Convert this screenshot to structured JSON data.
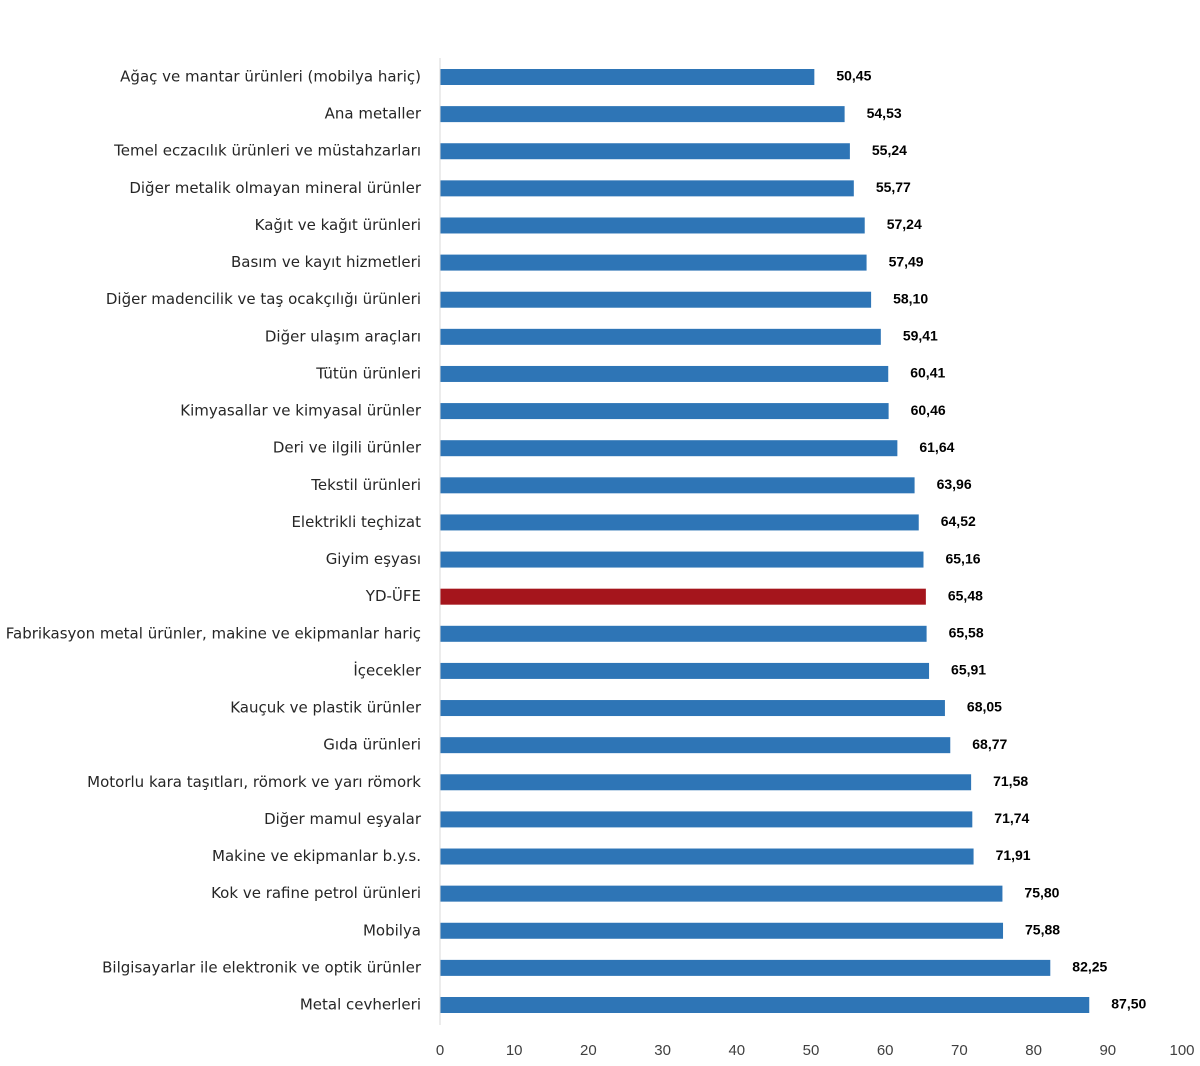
{
  "chart_data": {
    "type": "bar",
    "orientation": "horizontal",
    "title": "",
    "xlabel": "",
    "ylabel": "",
    "xlim": [
      0,
      100
    ],
    "xticks": [
      0,
      10,
      20,
      30,
      40,
      50,
      60,
      70,
      80,
      90,
      100
    ],
    "grid": false,
    "legend": "none",
    "colors": {
      "default": "#2e75b6",
      "highlight": "#a5151c"
    },
    "highlight_category": "YD-ÜFE",
    "categories": [
      "Ağaç ve mantar ürünleri (mobilya hariç)",
      "Ana metaller",
      "Temel eczacılık ürünleri ve müstahzarları",
      "Diğer metalik olmayan mineral ürünler",
      "Kağıt ve kağıt ürünleri",
      "Basım ve kayıt hizmetleri",
      "Diğer madencilik ve taş ocakçılığı ürünleri",
      "Diğer ulaşım araçları",
      "Tütün ürünleri",
      "Kimyasallar ve kimyasal ürünler",
      "Deri ve ilgili ürünler",
      "Tekstil ürünleri",
      "Elektrikli teçhizat",
      "Giyim eşyası",
      "YD-ÜFE",
      "Fabrikasyon metal ürünler, makine ve ekipmanlar hariç",
      "İçecekler",
      "Kauçuk ve plastik ürünler",
      "Gıda ürünleri",
      "Motorlu kara taşıtları, römork ve yarı römork",
      "Diğer mamul eşyalar",
      "Makine ve ekipmanlar b.y.s.",
      "Kok ve rafine petrol ürünleri",
      "Mobilya",
      "Bilgisayarlar ile elektronik ve optik ürünler",
      "Metal cevherleri"
    ],
    "values": [
      50.45,
      54.53,
      55.24,
      55.77,
      57.24,
      57.49,
      58.1,
      59.41,
      60.41,
      60.46,
      61.64,
      63.96,
      64.52,
      65.16,
      65.48,
      65.58,
      65.91,
      68.05,
      68.77,
      71.58,
      71.74,
      71.91,
      75.8,
      75.88,
      82.25,
      87.5
    ],
    "value_labels": [
      "50,45",
      "54,53",
      "55,24",
      "55,77",
      "57,24",
      "57,49",
      "58,10",
      "59,41",
      "60,41",
      "60,46",
      "61,64",
      "63,96",
      "64,52",
      "65,16",
      "65,48",
      "65,58",
      "65,91",
      "68,05",
      "68,77",
      "71,58",
      "71,74",
      "71,91",
      "75,80",
      "75,88",
      "82,25",
      "87,50"
    ]
  }
}
